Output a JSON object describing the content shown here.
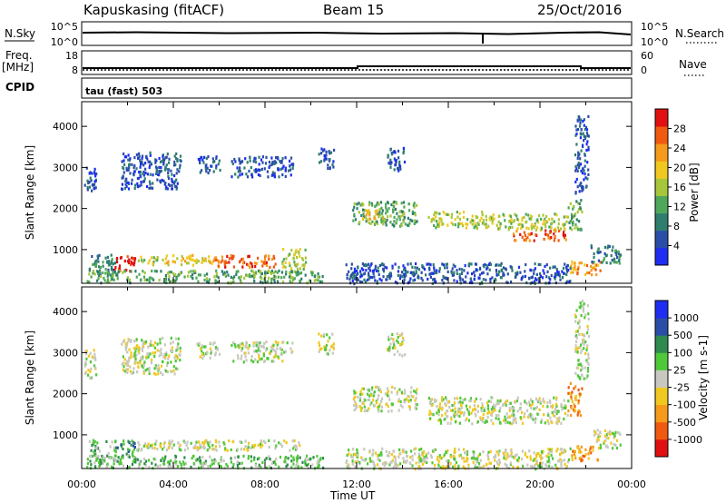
{
  "header": {
    "station": "Kapuskasing (fitACF)",
    "beam": "Beam 15",
    "date": "25/Oct/2016"
  },
  "status_panels": {
    "nsky_label": "N.Sky",
    "nsearch_label": "N.Search",
    "noise_ticks": [
      "10^5",
      "10^0"
    ],
    "freq_label": "Freq.",
    "freq_unit": "[MHz]",
    "freq_ticks": [
      "18",
      "8"
    ],
    "nave_label": "Nave",
    "nave_ticks": [
      "60",
      "0"
    ],
    "cpid_label": "CPID",
    "cpid_value": "tau (fast) 503"
  },
  "colors": {
    "power": [
      "#1d2ef0",
      "#2a4ea8",
      "#2e7d6e",
      "#4fa85a",
      "#a8c63a",
      "#f0c820",
      "#f59a1a",
      "#f05a10",
      "#e01010"
    ],
    "velocity": [
      "#e01010",
      "#f05a10",
      "#f59a1a",
      "#f0c820",
      "#c8c8c0",
      "#4fc83a",
      "#2e8a4e",
      "#2a4ea8",
      "#1d2ef0"
    ]
  },
  "chart_data": [
    {
      "type": "heatmap",
      "title": "Power",
      "xlabel": "",
      "ylabel": "Slant Range [km]",
      "xlim": [
        0,
        24
      ],
      "ylim": [
        180,
        4600
      ],
      "yticks": [
        "1000",
        "2000",
        "3000",
        "4000"
      ],
      "colorbar": {
        "label": "Power [dB]",
        "ticks": [
          "4",
          "8",
          "12",
          "16",
          "20",
          "24",
          "28"
        ],
        "range": [
          0,
          32
        ]
      },
      "regions": [
        {
          "t0": 0.1,
          "t1": 0.6,
          "r0": 2400,
          "r1": 3100,
          "level": 1
        },
        {
          "t0": 0.3,
          "t1": 1.5,
          "r0": 400,
          "r1": 900,
          "level": 2
        },
        {
          "t0": 1.4,
          "t1": 2.3,
          "r0": 500,
          "r1": 900,
          "level": 8
        },
        {
          "t0": 1.7,
          "t1": 4.3,
          "r0": 2500,
          "r1": 3400,
          "level": 1
        },
        {
          "t0": 2.3,
          "t1": 3.3,
          "r0": 650,
          "r1": 850,
          "level": 4
        },
        {
          "t0": 3.5,
          "t1": 5.7,
          "r0": 650,
          "r1": 900,
          "level": 5
        },
        {
          "t0": 5.7,
          "t1": 8.5,
          "r0": 600,
          "r1": 900,
          "level": 7
        },
        {
          "t0": 5.0,
          "t1": 6.0,
          "r0": 2900,
          "r1": 3300,
          "level": 1
        },
        {
          "t0": 6.5,
          "t1": 9.2,
          "r0": 2800,
          "r1": 3300,
          "level": 1
        },
        {
          "t0": 8.7,
          "t1": 9.8,
          "r0": 550,
          "r1": 1050,
          "level": 4
        },
        {
          "t0": 0.2,
          "t1": 10.5,
          "r0": 220,
          "r1": 520,
          "level": 3
        },
        {
          "t0": 10.3,
          "t1": 11.0,
          "r0": 3000,
          "r1": 3500,
          "level": 1
        },
        {
          "t0": 11.8,
          "t1": 14.6,
          "r0": 1600,
          "r1": 2200,
          "level": 3
        },
        {
          "t0": 12.2,
          "t1": 13.2,
          "r0": 1750,
          "r1": 2000,
          "level": 5
        },
        {
          "t0": 13.3,
          "t1": 14.1,
          "r0": 2950,
          "r1": 3500,
          "level": 1
        },
        {
          "t0": 15.1,
          "t1": 18.0,
          "r0": 1550,
          "r1": 1950,
          "level": 4
        },
        {
          "t0": 18.0,
          "t1": 21.2,
          "r0": 1500,
          "r1": 1900,
          "level": 4
        },
        {
          "t0": 18.8,
          "t1": 21.1,
          "r0": 1250,
          "r1": 1500,
          "level": 7
        },
        {
          "t0": 21.2,
          "t1": 21.8,
          "r0": 1500,
          "r1": 2300,
          "level": 3
        },
        {
          "t0": 21.3,
          "t1": 22.6,
          "r0": 400,
          "r1": 750,
          "level": 6
        },
        {
          "t0": 21.5,
          "t1": 22.1,
          "r0": 2400,
          "r1": 4300,
          "level": 1
        },
        {
          "t0": 22.2,
          "t1": 23.5,
          "r0": 700,
          "r1": 1150,
          "level": 2
        },
        {
          "t0": 11.5,
          "t1": 21.3,
          "r0": 200,
          "r1": 700,
          "level": 1
        }
      ]
    },
    {
      "type": "heatmap",
      "title": "Velocity",
      "xlabel": "Time UT",
      "ylabel": "Slant Range [km]",
      "xlim": [
        0,
        24
      ],
      "ylim": [
        180,
        4600
      ],
      "yticks": [
        "1000",
        "2000",
        "3000",
        "4000"
      ],
      "xticks": [
        "00:00",
        "04:00",
        "08:00",
        "12:00",
        "16:00",
        "20:00",
        "00:00"
      ],
      "colorbar": {
        "label": "Velocity [m s-1]",
        "ticks": [
          "-1000",
          "-500",
          "-100",
          "-25",
          "25",
          "100",
          "500",
          "1000"
        ],
        "range": [
          -1500,
          1500
        ]
      },
      "regions": [
        {
          "t0": 0.1,
          "t1": 0.6,
          "r0": 2400,
          "r1": 3100,
          "level": 4
        },
        {
          "t0": 0.3,
          "t1": 1.5,
          "r0": 400,
          "r1": 900,
          "level": 5
        },
        {
          "t0": 1.4,
          "t1": 2.3,
          "r0": 500,
          "r1": 900,
          "level": 6
        },
        {
          "t0": 1.7,
          "t1": 4.3,
          "r0": 2500,
          "r1": 3400,
          "level": 4
        },
        {
          "t0": 2.3,
          "t1": 9.5,
          "r0": 650,
          "r1": 900,
          "level": 4
        },
        {
          "t0": 5.0,
          "t1": 6.0,
          "r0": 2900,
          "r1": 3300,
          "level": 4
        },
        {
          "t0": 6.5,
          "t1": 9.2,
          "r0": 2800,
          "r1": 3300,
          "level": 4
        },
        {
          "t0": 0.2,
          "t1": 10.5,
          "r0": 220,
          "r1": 520,
          "level": 5
        },
        {
          "t0": 10.3,
          "t1": 11.0,
          "r0": 3000,
          "r1": 3500,
          "level": 4
        },
        {
          "t0": 11.8,
          "t1": 14.6,
          "r0": 1600,
          "r1": 2200,
          "level": 4
        },
        {
          "t0": 13.3,
          "t1": 14.1,
          "r0": 2950,
          "r1": 3500,
          "level": 4
        },
        {
          "t0": 15.1,
          "t1": 21.2,
          "r0": 1300,
          "r1": 1950,
          "level": 4
        },
        {
          "t0": 21.2,
          "t1": 21.8,
          "r0": 1500,
          "r1": 2300,
          "level": 2
        },
        {
          "t0": 21.3,
          "t1": 22.6,
          "r0": 400,
          "r1": 750,
          "level": 2
        },
        {
          "t0": 21.5,
          "t1": 22.1,
          "r0": 2400,
          "r1": 4300,
          "level": 4
        },
        {
          "t0": 22.2,
          "t1": 23.5,
          "r0": 700,
          "r1": 1150,
          "level": 4
        },
        {
          "t0": 11.5,
          "t1": 21.3,
          "r0": 200,
          "r1": 700,
          "level": 4
        }
      ]
    }
  ]
}
